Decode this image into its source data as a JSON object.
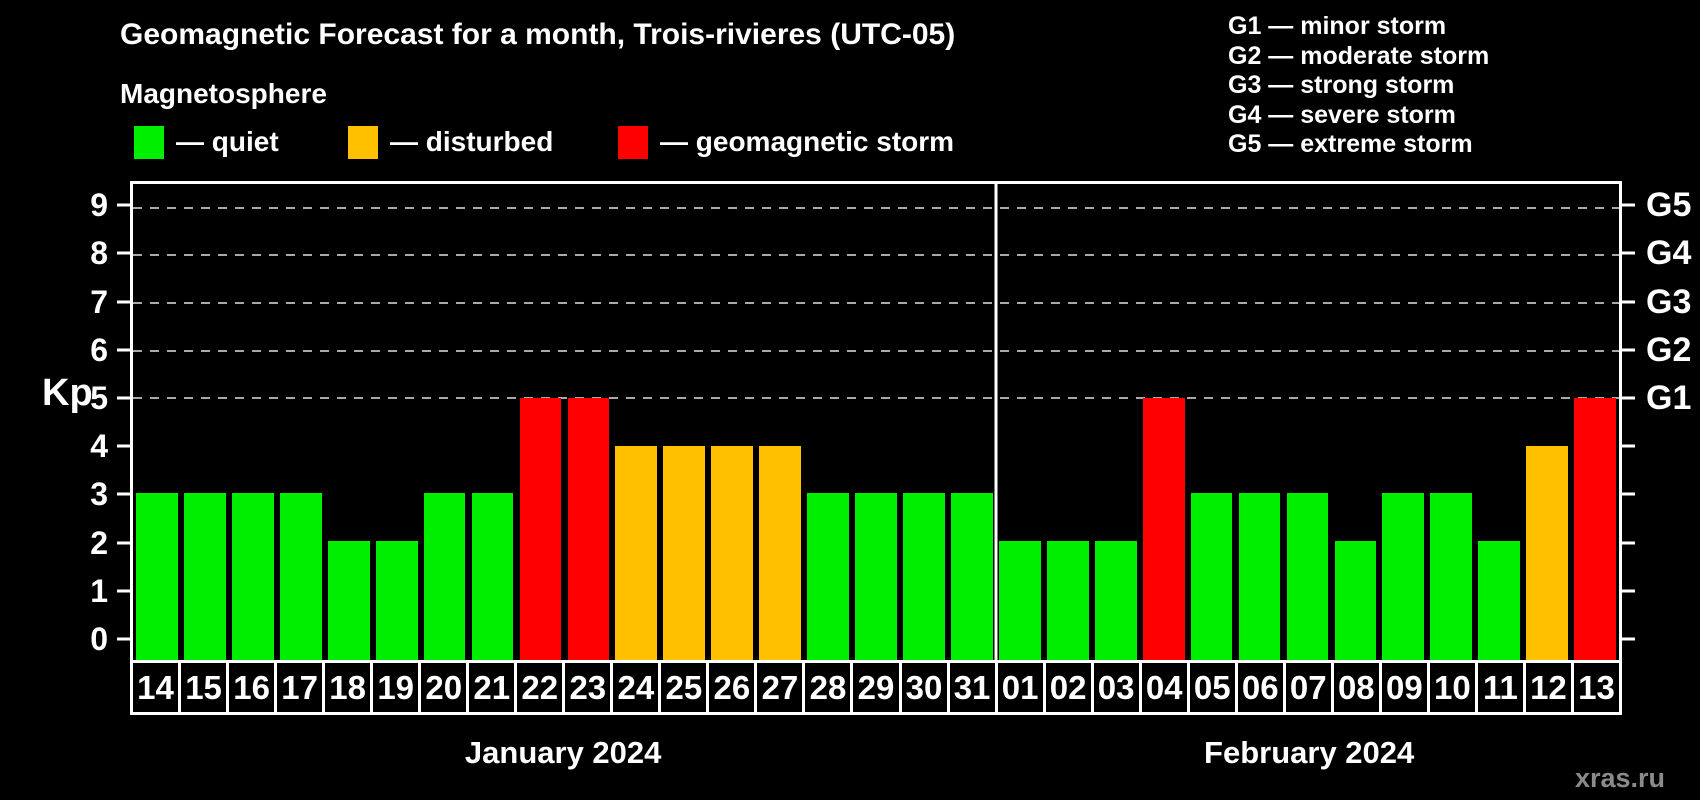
{
  "title": "Geomagnetic Forecast for a month, Trois-rivieres (UTC-05)",
  "watermark": "xras.ru",
  "legend": {
    "heading": "Magnetosphere",
    "items": [
      {
        "name": "quiet",
        "label": "— quiet",
        "color": "#00ee00"
      },
      {
        "name": "disturbed",
        "label": "— disturbed",
        "color": "#ffc000"
      },
      {
        "name": "storm",
        "label": "— geomagnetic storm",
        "color": "#ff0000"
      }
    ]
  },
  "storm_scale": [
    "G1 — minor storm",
    "G2 — moderate storm",
    "G3 — strong storm",
    "G4 — severe storm",
    "G5 — extreme storm"
  ],
  "chart_data": {
    "type": "bar",
    "title": "Geomagnetic Forecast for a month, Trois-rivieres (UTC-05)",
    "ylabel": "Kp",
    "ylim": [
      -0.5,
      9.5
    ],
    "yticks": [
      0,
      1,
      2,
      3,
      4,
      5,
      6,
      7,
      8,
      9
    ],
    "right_axis_labels": [
      {
        "level": 5,
        "label": "G1"
      },
      {
        "level": 6,
        "label": "G2"
      },
      {
        "level": 7,
        "label": "G3"
      },
      {
        "level": 8,
        "label": "G4"
      },
      {
        "level": 9,
        "label": "G5"
      }
    ],
    "gridline_levels": [
      5,
      6,
      7,
      8,
      9
    ],
    "grid": "dashed horizontal lines at storm levels only",
    "legend_position": "top-left",
    "months": [
      {
        "label": "January 2024",
        "days": [
          "14",
          "15",
          "16",
          "17",
          "18",
          "19",
          "20",
          "21",
          "22",
          "23",
          "24",
          "25",
          "26",
          "27",
          "28",
          "29",
          "30",
          "31"
        ],
        "values": [
          3,
          3,
          3,
          3,
          2,
          2,
          3,
          3,
          5,
          5,
          4,
          4,
          4,
          4,
          3,
          3,
          3,
          3
        ],
        "statuses": [
          "quiet",
          "quiet",
          "quiet",
          "quiet",
          "quiet",
          "quiet",
          "quiet",
          "quiet",
          "storm",
          "storm",
          "disturbed",
          "disturbed",
          "disturbed",
          "disturbed",
          "quiet",
          "quiet",
          "quiet",
          "quiet"
        ]
      },
      {
        "label": "February 2024",
        "days": [
          "01",
          "02",
          "03",
          "04",
          "05",
          "06",
          "07",
          "08",
          "09",
          "10",
          "11",
          "12",
          "13"
        ],
        "values": [
          2,
          2,
          2,
          5,
          3,
          3,
          3,
          2,
          3,
          3,
          2,
          4,
          5
        ],
        "statuses": [
          "quiet",
          "quiet",
          "quiet",
          "storm",
          "quiet",
          "quiet",
          "quiet",
          "quiet",
          "quiet",
          "quiet",
          "quiet",
          "disturbed",
          "storm"
        ]
      }
    ]
  }
}
